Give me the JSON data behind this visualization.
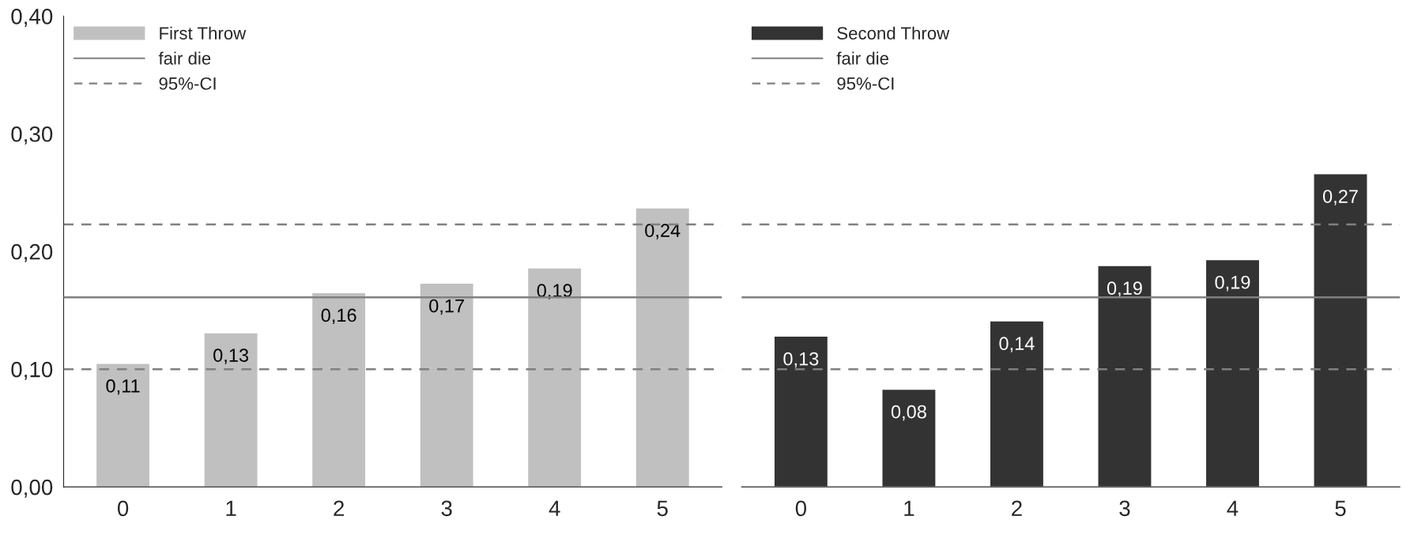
{
  "chart_data": [
    {
      "type": "bar",
      "categories": [
        "0",
        "1",
        "2",
        "3",
        "4",
        "5"
      ],
      "series": [
        {
          "name": "First Throw",
          "color": "#c0c0c0",
          "values": [
            0.105,
            0.131,
            0.165,
            0.173,
            0.186,
            0.237
          ],
          "value_labels": [
            "0,11",
            "0,13",
            "0,16",
            "0,17",
            "0,19",
            "0,24"
          ]
        }
      ],
      "ylim": [
        0,
        0.4
      ],
      "yticks": [
        {
          "value": 0,
          "label": "0,00"
        },
        {
          "value": 0.1,
          "label": "0,10"
        },
        {
          "value": 0.2,
          "label": "0,20"
        },
        {
          "value": 0.3,
          "label": "0,30"
        },
        {
          "value": 0.4,
          "label": "0,40"
        }
      ],
      "ref_lines": [
        {
          "axis": "y",
          "value": 0.161,
          "label": "fair die",
          "color": "#808080",
          "line_style": "solid"
        },
        {
          "axis": "y",
          "value": 0.223,
          "label": "95%-CI",
          "color": "#808080",
          "line_style": "dashed"
        },
        {
          "axis": "y",
          "value": 0.1,
          "color": "#808080",
          "line_style": "dashed"
        }
      ],
      "legend": "top left",
      "grid": false
    },
    {
      "type": "bar",
      "categories": [
        "0",
        "1",
        "2",
        "3",
        "4",
        "5"
      ],
      "series": [
        {
          "name": "Second Throw",
          "color": "#333333",
          "values": [
            0.128,
            0.083,
            0.141,
            0.188,
            0.193,
            0.266
          ],
          "value_labels": [
            "0,13",
            "0,08",
            "0,14",
            "0,19",
            "0,19",
            "0,27"
          ]
        }
      ],
      "ylim": [
        0,
        0.4
      ],
      "tick_labels": "x",
      "ref_lines": [
        {
          "axis": "y",
          "value": 0.161,
          "label": "fair die",
          "color": "#808080",
          "line_style": "solid"
        },
        {
          "axis": "y",
          "value": 0.223,
          "label": "95%-CI",
          "color": "#808080",
          "line_style": "dashed"
        },
        {
          "axis": "y",
          "value": 0.1,
          "color": "#808080",
          "line_style": "dashed"
        }
      ],
      "legend": "top left",
      "grid": false
    }
  ]
}
